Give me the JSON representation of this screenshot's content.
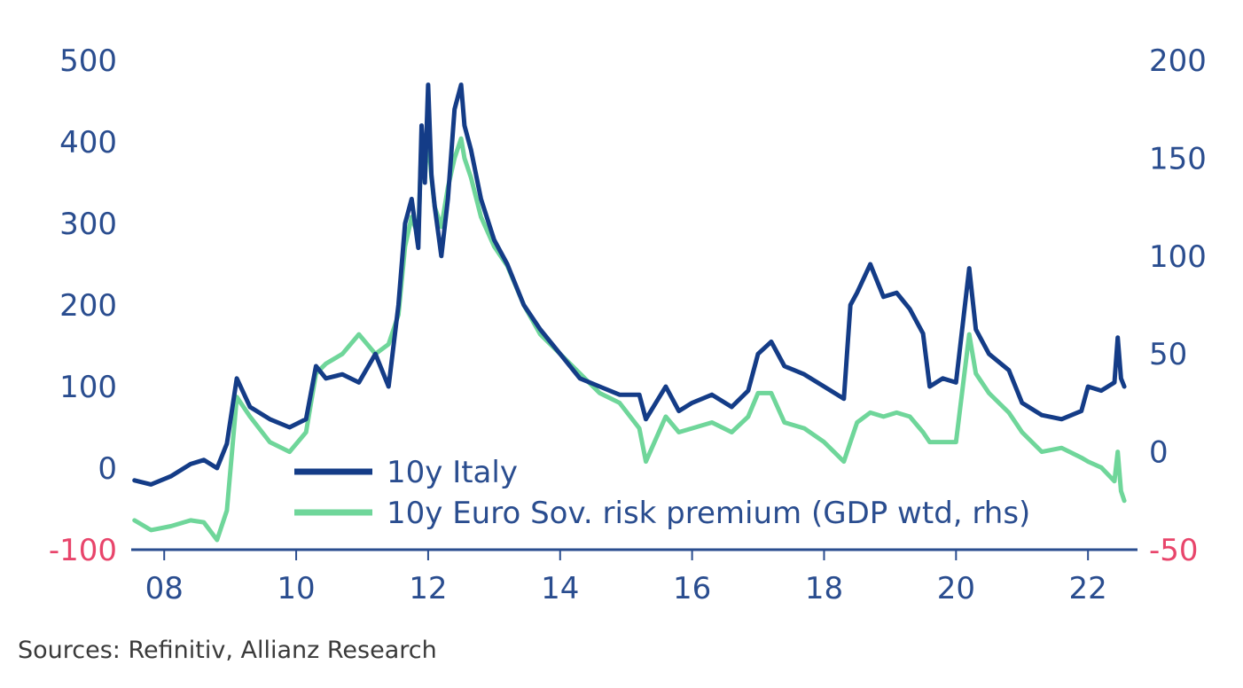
{
  "colors": {
    "axis_text": "#2a4d8f",
    "negative_text": "#e8456b",
    "italy": "#143c87",
    "euro": "#6fd69a",
    "axis_line": "#2a4d8f"
  },
  "source": "Sources: Refinitiv, Allianz Research",
  "chart_data": {
    "type": "line",
    "title": "",
    "xlabel": "",
    "ylabel_left": "",
    "ylabel_right": "",
    "xlim": [
      2007.5,
      2022.75
    ],
    "ylim_left": [
      -100,
      500
    ],
    "ylim_right": [
      -50,
      200
    ],
    "x_ticks": [
      {
        "value": 2008,
        "label": "08"
      },
      {
        "value": 2010,
        "label": "10"
      },
      {
        "value": 2012,
        "label": "12"
      },
      {
        "value": 2014,
        "label": "14"
      },
      {
        "value": 2016,
        "label": "16"
      },
      {
        "value": 2018,
        "label": "18"
      },
      {
        "value": 2020,
        "label": "20"
      },
      {
        "value": 2022,
        "label": "22"
      }
    ],
    "y_left_ticks": [
      {
        "value": 500,
        "label": "500"
      },
      {
        "value": 400,
        "label": "400"
      },
      {
        "value": 300,
        "label": "300"
      },
      {
        "value": 200,
        "label": "200"
      },
      {
        "value": 100,
        "label": "100"
      },
      {
        "value": 0,
        "label": "0"
      },
      {
        "value": -100,
        "label": "-100"
      }
    ],
    "y_right_ticks": [
      {
        "value": 200,
        "label": "200"
      },
      {
        "value": 150,
        "label": "150"
      },
      {
        "value": 100,
        "label": "100"
      },
      {
        "value": 50,
        "label": "50"
      },
      {
        "value": 0,
        "label": "0"
      },
      {
        "value": -50,
        "label": "-50"
      }
    ],
    "legend_position": "bottom-center",
    "series": [
      {
        "name": "10y Italy",
        "axis": "left",
        "x": [
          2007.55,
          2007.8,
          2008.1,
          2008.4,
          2008.6,
          2008.8,
          2008.95,
          2009.1,
          2009.3,
          2009.6,
          2009.9,
          2010.15,
          2010.3,
          2010.45,
          2010.7,
          2010.95,
          2011.2,
          2011.4,
          2011.55,
          2011.65,
          2011.75,
          2011.85,
          2011.9,
          2011.95,
          2012.0,
          2012.05,
          2012.1,
          2012.2,
          2012.3,
          2012.4,
          2012.5,
          2012.55,
          2012.65,
          2012.8,
          2013.0,
          2013.2,
          2013.45,
          2013.7,
          2014.0,
          2014.3,
          2014.6,
          2014.9,
          2015.2,
          2015.3,
          2015.6,
          2015.8,
          2016.0,
          2016.3,
          2016.6,
          2016.85,
          2017.0,
          2017.2,
          2017.4,
          2017.7,
          2018.0,
          2018.3,
          2018.4,
          2018.5,
          2018.7,
          2018.9,
          2019.1,
          2019.3,
          2019.5,
          2019.6,
          2019.8,
          2020.0,
          2020.2,
          2020.3,
          2020.5,
          2020.8,
          2021.0,
          2021.3,
          2021.6,
          2021.9,
          2022.0,
          2022.2,
          2022.4,
          2022.45,
          2022.5,
          2022.55
        ],
        "values": [
          -15,
          -20,
          -10,
          5,
          10,
          0,
          30,
          110,
          75,
          60,
          50,
          60,
          125,
          110,
          115,
          105,
          140,
          100,
          200,
          300,
          330,
          270,
          420,
          350,
          470,
          360,
          320,
          260,
          330,
          440,
          470,
          420,
          390,
          330,
          280,
          250,
          200,
          170,
          140,
          110,
          100,
          90,
          90,
          60,
          100,
          70,
          80,
          90,
          75,
          95,
          140,
          155,
          125,
          115,
          100,
          85,
          200,
          215,
          250,
          210,
          215,
          195,
          165,
          100,
          110,
          105,
          245,
          170,
          140,
          120,
          80,
          65,
          60,
          70,
          100,
          95,
          105,
          160,
          110,
          100
        ]
      },
      {
        "name": "10y Euro Sov. risk premium (GDP wtd, rhs)",
        "axis": "right",
        "x": [
          2007.55,
          2007.8,
          2008.1,
          2008.4,
          2008.6,
          2008.8,
          2008.95,
          2009.1,
          2009.3,
          2009.6,
          2009.9,
          2010.15,
          2010.3,
          2010.45,
          2010.7,
          2010.95,
          2011.2,
          2011.4,
          2011.55,
          2011.65,
          2011.75,
          2011.85,
          2011.9,
          2011.95,
          2012.0,
          2012.05,
          2012.1,
          2012.2,
          2012.3,
          2012.4,
          2012.5,
          2012.55,
          2012.65,
          2012.8,
          2013.0,
          2013.2,
          2013.45,
          2013.7,
          2014.0,
          2014.3,
          2014.6,
          2014.9,
          2015.2,
          2015.3,
          2015.6,
          2015.8,
          2016.0,
          2016.3,
          2016.6,
          2016.85,
          2017.0,
          2017.2,
          2017.4,
          2017.7,
          2018.0,
          2018.3,
          2018.4,
          2018.5,
          2018.7,
          2018.9,
          2019.1,
          2019.3,
          2019.5,
          2019.6,
          2019.8,
          2020.0,
          2020.2,
          2020.3,
          2020.5,
          2020.8,
          2021.0,
          2021.3,
          2021.6,
          2021.9,
          2022.0,
          2022.2,
          2022.4,
          2022.45,
          2022.5,
          2022.55
        ],
        "values": [
          -35,
          -40,
          -38,
          -35,
          -36,
          -45,
          -30,
          28,
          18,
          5,
          0,
          10,
          40,
          45,
          50,
          60,
          50,
          55,
          70,
          105,
          120,
          110,
          160,
          140,
          165,
          140,
          125,
          115,
          135,
          150,
          160,
          150,
          140,
          120,
          105,
          95,
          75,
          60,
          50,
          40,
          30,
          25,
          12,
          -5,
          18,
          10,
          12,
          15,
          10,
          18,
          30,
          30,
          15,
          12,
          5,
          -5,
          5,
          15,
          20,
          18,
          20,
          18,
          10,
          5,
          5,
          5,
          60,
          40,
          30,
          20,
          10,
          0,
          2,
          -3,
          -5,
          -8,
          -15,
          0,
          -20,
          -25
        ]
      }
    ]
  }
}
